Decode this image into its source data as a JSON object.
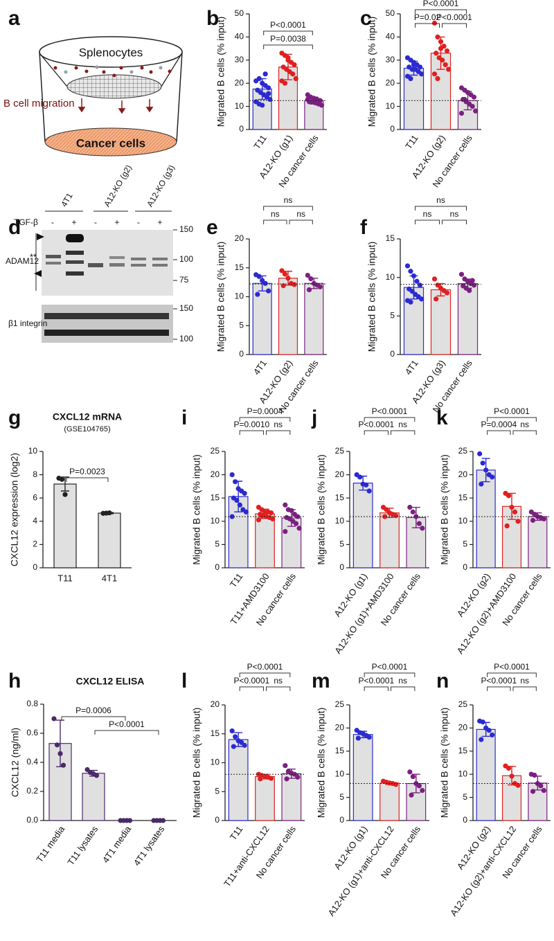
{
  "panel_a": {
    "label": "a",
    "top": "Splenocytes",
    "arrow_label": "B cell migration",
    "bottom": "Cancer cells"
  },
  "panel_d": {
    "label": "d",
    "lanes": [
      "4T1",
      "A12-KO (g2)",
      "A12-KO (g3)"
    ],
    "treatment": "TGF-β",
    "treatment_states": [
      "-",
      "+",
      "-",
      "+",
      "-",
      "+"
    ],
    "blots": [
      {
        "name": "ADAM12",
        "markers": [
          150,
          100,
          75
        ]
      },
      {
        "name": "β1 integrin",
        "markers": [
          150,
          100
        ]
      }
    ],
    "asterisks": "**"
  },
  "chart_data": [
    {
      "type": "bar",
      "label": "b",
      "ylabel": "Migrated B cells (% input)",
      "categories": [
        "T11",
        "A12-KO (g1)",
        "No cancer cells"
      ],
      "colors": [
        "#2b2bd0",
        "#e02020",
        "#7b2080"
      ],
      "values": [
        17.5,
        27,
        12.5
      ],
      "errors": [
        4.5,
        5.5,
        1.5
      ],
      "points": [
        [
          21,
          22,
          20,
          19,
          18,
          17,
          16,
          15,
          14,
          13,
          12,
          11,
          10.5,
          24,
          15.5
        ],
        [
          33,
          32,
          30,
          29,
          28,
          27,
          26,
          25,
          24,
          22,
          21,
          20,
          31
        ],
        [
          15,
          14,
          13.5,
          13,
          12.5,
          12,
          12,
          11.5,
          11,
          10.5,
          13
        ]
      ],
      "reference_line": 12.5,
      "ylim": [
        0,
        50
      ],
      "yticks": [
        0,
        10,
        20,
        30,
        40,
        50
      ],
      "comparisons": [
        {
          "pair": [
            0,
            2
          ],
          "label": "P<0.0001"
        },
        {
          "pair": [
            0,
            2
          ],
          "label": "P=0.0038"
        }
      ]
    },
    {
      "type": "bar",
      "label": "c",
      "ylabel": "Migrated B cells (% input)",
      "categories": [
        "T11",
        "A12-KO (g2)",
        "No cancer cells"
      ],
      "colors": [
        "#2b2bd0",
        "#e02020",
        "#7b2080"
      ],
      "values": [
        26.5,
        33,
        12.5
      ],
      "errors": [
        3,
        7,
        4
      ],
      "points": [
        [
          31,
          30,
          29,
          28,
          27,
          27,
          26,
          26,
          25,
          24,
          23,
          22,
          28
        ],
        [
          46,
          40,
          38,
          36,
          34,
          33,
          31,
          30,
          28,
          26,
          24,
          22,
          35
        ],
        [
          18,
          17,
          16,
          15,
          14,
          13,
          12,
          11,
          10,
          8,
          7,
          13
        ]
      ],
      "reference_line": 12.5,
      "ylim": [
        0,
        50
      ],
      "yticks": [
        0,
        10,
        20,
        30,
        40,
        50
      ],
      "comparisons": [
        {
          "pair": [
            0,
            2
          ],
          "label": "P<0.0001"
        },
        {
          "pair": [
            0,
            1
          ],
          "label": "P=0.02"
        },
        {
          "pair": [
            1,
            2
          ],
          "label": "P<0.0001"
        }
      ]
    },
    {
      "type": "bar",
      "label": "e",
      "ylabel": "Migrated B cells (% input)",
      "categories": [
        "4T1",
        "A12-KO (g2)",
        "No cancer cells"
      ],
      "colors": [
        "#2b2bd0",
        "#e02020",
        "#7b2080"
      ],
      "values": [
        12.3,
        13.2,
        12.3
      ],
      "errors": [
        1.3,
        1.2,
        0.9
      ],
      "points": [
        [
          13.8,
          13.5,
          12.8,
          12.3,
          11,
          10.4
        ],
        [
          14.5,
          13.9,
          13.2,
          12.3,
          12.1,
          11.9
        ],
        [
          13.7,
          13.1,
          12.3,
          12,
          11.7,
          11.2
        ]
      ],
      "reference_line": 12.2,
      "ylim": [
        0,
        20
      ],
      "yticks": [
        0,
        5,
        10,
        15,
        20
      ],
      "comparisons": [
        {
          "pair": [
            0,
            2
          ],
          "label": "ns"
        },
        {
          "pair": [
            0,
            1
          ],
          "label": "ns"
        },
        {
          "pair": [
            1,
            2
          ],
          "label": "ns"
        }
      ]
    },
    {
      "type": "bar",
      "label": "f",
      "ylabel": "Migrated B cells (% input)",
      "categories": [
        "4T1",
        "A12-KO (g3)",
        "No cancer cells"
      ],
      "colors": [
        "#2b2bd0",
        "#e02020",
        "#7b2080"
      ],
      "values": [
        8.7,
        8.4,
        9.2
      ],
      "errors": [
        1.5,
        0.8,
        0.6
      ],
      "points": [
        [
          11.5,
          10.8,
          10.2,
          9.5,
          9,
          8.5,
          8.2,
          7.8,
          7.5,
          7.2,
          7,
          6.8
        ],
        [
          9.8,
          9,
          8.6,
          8.3,
          8,
          7.2
        ],
        [
          10.4,
          9.8,
          9.5,
          9.2,
          9,
          8.9,
          8.6,
          8.3,
          9.6
        ]
      ],
      "reference_line": 9.1,
      "ylim": [
        0,
        15
      ],
      "yticks": [
        0,
        5,
        10,
        15
      ],
      "comparisons": [
        {
          "pair": [
            0,
            2
          ],
          "label": "ns"
        },
        {
          "pair": [
            0,
            1
          ],
          "label": "ns"
        },
        {
          "pair": [
            1,
            2
          ],
          "label": "ns"
        }
      ]
    },
    {
      "type": "bar",
      "label": "g",
      "title": "CXCL12 mRNA",
      "subtitle": "(GSE104765)",
      "ylabel": "CXCL12 expression (log2)",
      "categories": [
        "T11",
        "4T1"
      ],
      "colors": [
        "#222222",
        "#222222"
      ],
      "values": [
        7.2,
        4.7
      ],
      "errors": [
        0.6,
        0.05
      ],
      "points": [
        [
          7.7,
          7.6,
          6.3
        ],
        [
          4.68,
          4.7,
          4.72
        ]
      ],
      "ylim": [
        0,
        10
      ],
      "yticks": [
        0,
        2,
        4,
        6,
        8,
        10
      ],
      "comparisons": [
        {
          "pair": [
            0,
            1
          ],
          "label": "P=0.0023"
        }
      ]
    },
    {
      "type": "bar",
      "label": "i",
      "ylabel": "Migrated B cells (% input)",
      "categories": [
        "T11",
        "T11+AMD3100",
        "No cancer cells"
      ],
      "colors": [
        "#2b2bd0",
        "#e02020",
        "#7b2080"
      ],
      "values": [
        15.3,
        11.6,
        10.7
      ],
      "errors": [
        3.3,
        1,
        1.8
      ],
      "points": [
        [
          20,
          18.5,
          17,
          16.5,
          16,
          15,
          14.5,
          13.5,
          12.5,
          12,
          11
        ],
        [
          13,
          12.5,
          12,
          12,
          11.8,
          11.5,
          11.3,
          11,
          10.8,
          10.5,
          10.3,
          11.2
        ],
        [
          13.5,
          12.5,
          12.3,
          11.5,
          11,
          10.8,
          10.5,
          10,
          9.5,
          8.5,
          7.8
        ]
      ],
      "reference_line": 11,
      "ylim": [
        0,
        25
      ],
      "yticks": [
        0,
        5,
        10,
        15,
        20,
        25
      ],
      "comparisons": [
        {
          "pair": [
            0,
            2
          ],
          "label": "P=0.0004"
        },
        {
          "pair": [
            0,
            1
          ],
          "label": "P=0.0010"
        },
        {
          "pair": [
            1,
            2
          ],
          "label": "ns"
        }
      ]
    },
    {
      "type": "bar",
      "label": "j",
      "ylabel": "Migrated B cells (% input)",
      "categories": [
        "A12-KO (g1)",
        "A12-KO (g1)+AMD3100",
        "No cancer cells"
      ],
      "colors": [
        "#2b2bd0",
        "#e02020",
        "#7b2080"
      ],
      "values": [
        18.2,
        11.8,
        10.8
      ],
      "errors": [
        1.5,
        1,
        2.2
      ],
      "points": [
        [
          20,
          19.5,
          18,
          17.8,
          16.5
        ],
        [
          13,
          12.5,
          11.8,
          11.5,
          11.2,
          11
        ],
        [
          13,
          12,
          11,
          9.5,
          8.5
        ]
      ],
      "reference_line": 11,
      "ylim": [
        0,
        25
      ],
      "yticks": [
        0,
        5,
        10,
        15,
        20,
        25
      ],
      "comparisons": [
        {
          "pair": [
            0,
            2
          ],
          "label": "P<0.0001"
        },
        {
          "pair": [
            0,
            1
          ],
          "label": "P<0.0001"
        },
        {
          "pair": [
            1,
            2
          ],
          "label": "ns"
        }
      ]
    },
    {
      "type": "bar",
      "label": "k",
      "ylabel": "Migrated B cells (% input)",
      "categories": [
        "A12-KO (g2)",
        "A12-KO (g2)+AMD3100",
        "No cancer cells"
      ],
      "colors": [
        "#2b2bd0",
        "#e02020",
        "#7b2080"
      ],
      "values": [
        21,
        13.2,
        11
      ],
      "errors": [
        2.5,
        2.8,
        0.8
      ],
      "points": [
        [
          24.5,
          22.5,
          21,
          20,
          19.5,
          18
        ],
        [
          16,
          15.5,
          13,
          12,
          10,
          9
        ],
        [
          12,
          11.5,
          11,
          10.8,
          10.5,
          10.2
        ]
      ],
      "reference_line": 11,
      "ylim": [
        0,
        25
      ],
      "yticks": [
        0,
        5,
        10,
        15,
        20,
        25
      ],
      "comparisons": [
        {
          "pair": [
            0,
            2
          ],
          "label": "P<0.0001"
        },
        {
          "pair": [
            0,
            1
          ],
          "label": "P=0.0004"
        },
        {
          "pair": [
            1,
            2
          ],
          "label": "ns"
        }
      ]
    },
    {
      "type": "bar",
      "label": "h",
      "title": "CXCL12 ELISA",
      "ylabel": "CXCL12 (ng/ml)",
      "categories": [
        "T11 media",
        "T11 lysates",
        "4T1 media",
        "4T1 lysates"
      ],
      "colors": [
        "#4a2a6a",
        "#4a2a6a",
        "#4a2a6a",
        "#4a2a6a"
      ],
      "values": [
        0.53,
        0.325,
        0,
        0
      ],
      "errors": [
        0.16,
        0.02,
        0,
        0
      ],
      "points": [
        [
          0.7,
          0.52,
          0.46,
          0.38
        ],
        [
          0.35,
          0.33,
          0.32,
          0.31
        ],
        [
          0,
          0,
          0,
          0
        ],
        [
          0,
          0,
          0,
          0
        ]
      ],
      "ylim": [
        0,
        0.8
      ],
      "yticks": [
        {
          "value": 0,
          "label": "0.0"
        },
        0.2,
        0.4,
        0.6,
        0.8
      ],
      "comparisons": [
        {
          "pair": [
            0,
            2
          ],
          "label": "P=0.0006"
        },
        {
          "pair": [
            1,
            3
          ],
          "label": "P<0.0001"
        }
      ]
    },
    {
      "type": "bar",
      "label": "l",
      "ylabel": "Migrated B cells (% input)",
      "categories": [
        "T11",
        "T11+anti-CXCL12",
        "No cancer cells"
      ],
      "colors": [
        "#2b2bd0",
        "#e02020",
        "#7b2080"
      ],
      "values": [
        14,
        7.6,
        8.1
      ],
      "errors": [
        1.2,
        0.4,
        0.8
      ],
      "points": [
        [
          15.5,
          14.5,
          13.8,
          13.5,
          13,
          12.8
        ],
        [
          8,
          7.8,
          7.6,
          7.5,
          7.3,
          7.2
        ],
        [
          9.5,
          8.5,
          8.2,
          8,
          7.5,
          7.2
        ]
      ],
      "reference_line": 8,
      "ylim": [
        0,
        20
      ],
      "yticks": [
        0,
        5,
        10,
        15,
        20
      ],
      "comparisons": [
        {
          "pair": [
            0,
            2
          ],
          "label": "P<0.0001"
        },
        {
          "pair": [
            0,
            1
          ],
          "label": "P<0.0001"
        },
        {
          "pair": [
            1,
            2
          ],
          "label": "ns"
        }
      ]
    },
    {
      "type": "bar",
      "label": "m",
      "ylabel": "Migrated B cells (% input)",
      "categories": [
        "A12-KO (g1)",
        "A12-KO (g1)+anti-CXCL12",
        "No cancer cells"
      ],
      "colors": [
        "#2b2bd0",
        "#e02020",
        "#7b2080"
      ],
      "values": [
        18.6,
        8.1,
        8
      ],
      "errors": [
        0.7,
        0.3,
        2
      ],
      "points": [
        [
          19.5,
          19,
          18.8,
          18.4,
          18,
          17.8
        ],
        [
          8.5,
          8.3,
          8.1,
          8,
          7.8
        ],
        [
          10.5,
          9.5,
          8,
          7.5,
          6.5,
          5.5
        ]
      ],
      "reference_line": 8,
      "ylim": [
        0,
        25
      ],
      "yticks": [
        0,
        5,
        10,
        15,
        20,
        25
      ],
      "comparisons": [
        {
          "pair": [
            0,
            2
          ],
          "label": "P<0.0001"
        },
        {
          "pair": [
            0,
            1
          ],
          "label": "P<0.0001"
        },
        {
          "pair": [
            1,
            2
          ],
          "label": "ns"
        }
      ]
    },
    {
      "type": "bar",
      "label": "n",
      "ylabel": "Migrated B cells (% input)",
      "categories": [
        "A12-KO (g2)",
        "A12-KO (g2)+anti-CXCL12",
        "No cancer cells"
      ],
      "colors": [
        "#2b2bd0",
        "#e02020",
        "#7b2080"
      ],
      "values": [
        19.7,
        9.7,
        8.1
      ],
      "errors": [
        1.5,
        2,
        1.5
      ],
      "points": [
        [
          21.5,
          21.3,
          20,
          19.5,
          18.5,
          17.5
        ],
        [
          11.8,
          11.3,
          9.6,
          8,
          7.6
        ],
        [
          10,
          9.8,
          8,
          7.5,
          6.5,
          6.3
        ]
      ],
      "reference_line": 8,
      "ylim": [
        0,
        25
      ],
      "yticks": [
        0,
        5,
        10,
        15,
        20,
        25
      ],
      "comparisons": [
        {
          "pair": [
            0,
            2
          ],
          "label": "P<0.0001"
        },
        {
          "pair": [
            0,
            1
          ],
          "label": "P<0.0001"
        },
        {
          "pair": [
            1,
            2
          ],
          "label": "ns"
        }
      ]
    }
  ]
}
